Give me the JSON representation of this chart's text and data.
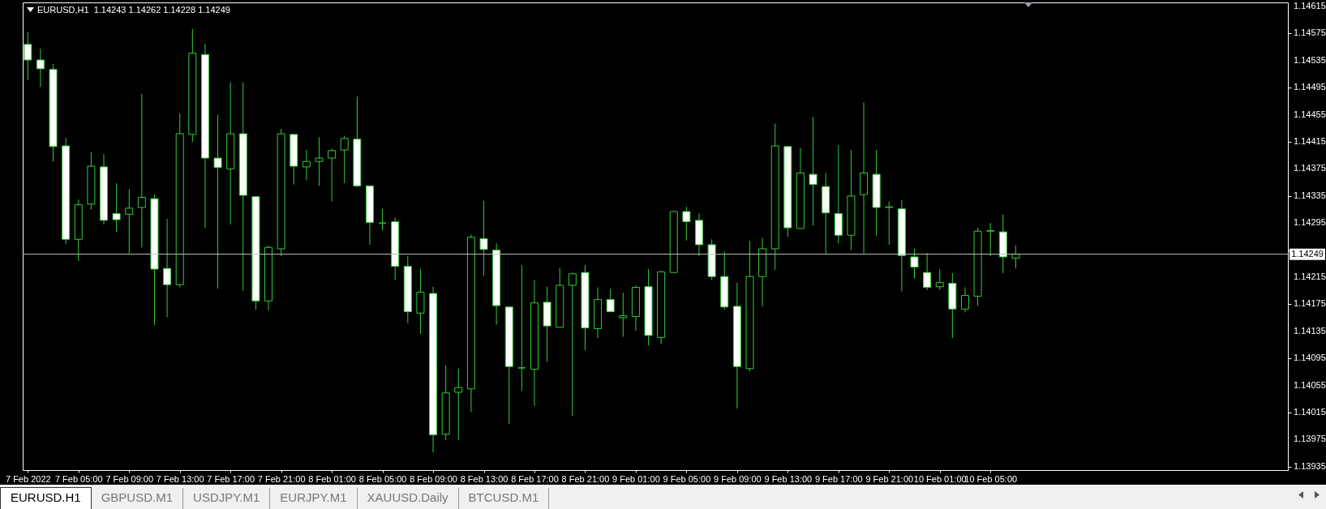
{
  "chart_data": {
    "type": "candlestick",
    "title": "EURUSD,H1  1.14243 1.14262 1.14228 1.14249",
    "x": [
      "2022-02-07T01:00",
      "2022-02-07T02:00",
      "2022-02-07T03:00",
      "2022-02-07T04:00",
      "2022-02-07T05:00",
      "2022-02-07T06:00",
      "2022-02-07T07:00",
      "2022-02-07T08:00",
      "2022-02-07T09:00",
      "2022-02-07T10:00",
      "2022-02-07T11:00",
      "2022-02-07T12:00",
      "2022-02-07T13:00",
      "2022-02-07T14:00",
      "2022-02-07T15:00",
      "2022-02-07T16:00",
      "2022-02-07T17:00",
      "2022-02-07T18:00",
      "2022-02-07T19:00",
      "2022-02-07T20:00",
      "2022-02-07T21:00",
      "2022-02-07T22:00",
      "2022-02-07T23:00",
      "2022-02-08T00:00",
      "2022-02-08T01:00",
      "2022-02-08T02:00",
      "2022-02-08T03:00",
      "2022-02-08T04:00",
      "2022-02-08T05:00",
      "2022-02-08T06:00",
      "2022-02-08T07:00",
      "2022-02-08T08:00",
      "2022-02-08T09:00",
      "2022-02-08T10:00",
      "2022-02-08T11:00",
      "2022-02-08T12:00",
      "2022-02-08T13:00",
      "2022-02-08T14:00",
      "2022-02-08T15:00",
      "2022-02-08T16:00",
      "2022-02-08T17:00",
      "2022-02-08T18:00",
      "2022-02-08T19:00",
      "2022-02-08T20:00",
      "2022-02-08T21:00",
      "2022-02-08T22:00",
      "2022-02-08T23:00",
      "2022-02-09T00:00",
      "2022-02-09T01:00",
      "2022-02-09T02:00",
      "2022-02-09T03:00",
      "2022-02-09T04:00",
      "2022-02-09T05:00",
      "2022-02-09T06:00",
      "2022-02-09T07:00",
      "2022-02-09T08:00",
      "2022-02-09T09:00",
      "2022-02-09T10:00",
      "2022-02-09T11:00",
      "2022-02-09T12:00",
      "2022-02-09T13:00",
      "2022-02-09T14:00",
      "2022-02-09T15:00",
      "2022-02-09T16:00",
      "2022-02-09T17:00",
      "2022-02-09T18:00",
      "2022-02-09T19:00",
      "2022-02-09T20:00",
      "2022-02-09T21:00",
      "2022-02-09T22:00",
      "2022-02-09T23:00",
      "2022-02-10T00:00",
      "2022-02-10T01:00",
      "2022-02-10T02:00",
      "2022-02-10T03:00",
      "2022-02-10T04:00",
      "2022-02-10T05:00",
      "2022-02-10T06:00",
      "2022-02-10T07:00"
    ],
    "ohlc": [
      [
        1.14559,
        1.14577,
        1.14506,
        1.14536
      ],
      [
        1.14536,
        1.14553,
        1.14496,
        1.14523
      ],
      [
        1.14522,
        1.1453,
        1.14386,
        1.14408
      ],
      [
        1.14409,
        1.14421,
        1.14264,
        1.14271
      ],
      [
        1.14271,
        1.1433,
        1.14239,
        1.14322
      ],
      [
        1.14323,
        1.144,
        1.14315,
        1.14379
      ],
      [
        1.14378,
        1.14397,
        1.14293,
        1.14299
      ],
      [
        1.14309,
        1.14354,
        1.14282,
        1.143
      ],
      [
        1.14308,
        1.14345,
        1.1425,
        1.14317
      ],
      [
        1.14318,
        1.14486,
        1.14259,
        1.14333
      ],
      [
        1.14331,
        1.14337,
        1.14144,
        1.14227
      ],
      [
        1.14228,
        1.14301,
        1.14156,
        1.14204
      ],
      [
        1.14204,
        1.14457,
        1.142,
        1.14427
      ],
      [
        1.14426,
        1.14582,
        1.14415,
        1.14546
      ],
      [
        1.14544,
        1.1456,
        1.14288,
        1.14391
      ],
      [
        1.14391,
        1.14455,
        1.14198,
        1.14377
      ],
      [
        1.14375,
        1.14503,
        1.14293,
        1.14427
      ],
      [
        1.14427,
        1.14503,
        1.14195,
        1.14336
      ],
      [
        1.14334,
        1.14334,
        1.14167,
        1.1418
      ],
      [
        1.1418,
        1.14262,
        1.14166,
        1.14259
      ],
      [
        1.14257,
        1.14434,
        1.14246,
        1.14427
      ],
      [
        1.14426,
        1.14426,
        1.14352,
        1.14379
      ],
      [
        1.14378,
        1.14403,
        1.14358,
        1.14386
      ],
      [
        1.14386,
        1.14422,
        1.1435,
        1.14391
      ],
      [
        1.14391,
        1.14405,
        1.14327,
        1.14402
      ],
      [
        1.14403,
        1.14424,
        1.14354,
        1.1442
      ],
      [
        1.14419,
        1.14482,
        1.14348,
        1.1435
      ],
      [
        1.1435,
        1.1435,
        1.14263,
        1.14296
      ],
      [
        1.14295,
        1.14316,
        1.14284,
        1.14295
      ],
      [
        1.14297,
        1.14303,
        1.14211,
        1.14231
      ],
      [
        1.14231,
        1.14246,
        1.14147,
        1.14164
      ],
      [
        1.14162,
        1.14227,
        1.14131,
        1.14193
      ],
      [
        1.14191,
        1.14201,
        1.13956,
        1.13982
      ],
      [
        1.13983,
        1.14085,
        1.13974,
        1.14044
      ],
      [
        1.14045,
        1.1408,
        1.13974,
        1.14052
      ],
      [
        1.1405,
        1.14278,
        1.14016,
        1.14274
      ],
      [
        1.14272,
        1.14328,
        1.14217,
        1.14256
      ],
      [
        1.14255,
        1.14265,
        1.14145,
        1.14173
      ],
      [
        1.14171,
        1.14171,
        1.13998,
        1.14083
      ],
      [
        1.14081,
        1.14233,
        1.14047,
        1.14081
      ],
      [
        1.14079,
        1.14211,
        1.14025,
        1.14177
      ],
      [
        1.14178,
        1.14201,
        1.1409,
        1.14143
      ],
      [
        1.14141,
        1.14229,
        1.14141,
        1.14203
      ],
      [
        1.14203,
        1.14222,
        1.1401,
        1.1422
      ],
      [
        1.14222,
        1.14233,
        1.14107,
        1.1414
      ],
      [
        1.14139,
        1.142,
        1.14125,
        1.14182
      ],
      [
        1.14182,
        1.14198,
        1.14164,
        1.14164
      ],
      [
        1.14155,
        1.14192,
        1.14127,
        1.14158
      ],
      [
        1.14157,
        1.14203,
        1.14136,
        1.142
      ],
      [
        1.14201,
        1.14227,
        1.14114,
        1.14129
      ],
      [
        1.14126,
        1.14224,
        1.14116,
        1.14223
      ],
      [
        1.14222,
        1.14312,
        1.14222,
        1.14312
      ],
      [
        1.14312,
        1.14319,
        1.14269,
        1.14297
      ],
      [
        1.14299,
        1.14309,
        1.14246,
        1.14263
      ],
      [
        1.14263,
        1.14271,
        1.14211,
        1.14216
      ],
      [
        1.14216,
        1.14253,
        1.14167,
        1.14171
      ],
      [
        1.14172,
        1.14207,
        1.14021,
        1.14083
      ],
      [
        1.1408,
        1.14269,
        1.14076,
        1.14216
      ],
      [
        1.14216,
        1.14273,
        1.14172,
        1.14257
      ],
      [
        1.14257,
        1.14442,
        1.14226,
        1.14409
      ],
      [
        1.14408,
        1.14409,
        1.14275,
        1.14288
      ],
      [
        1.14287,
        1.14406,
        1.14287,
        1.14369
      ],
      [
        1.14367,
        1.14452,
        1.14291,
        1.14352
      ],
      [
        1.14349,
        1.14369,
        1.14249,
        1.1431
      ],
      [
        1.14309,
        1.1441,
        1.14265,
        1.14277
      ],
      [
        1.14277,
        1.14403,
        1.14255,
        1.14335
      ],
      [
        1.14337,
        1.14473,
        1.1425,
        1.14369
      ],
      [
        1.14367,
        1.14403,
        1.14276,
        1.14318
      ],
      [
        1.14318,
        1.14327,
        1.14263,
        1.14319
      ],
      [
        1.14316,
        1.14329,
        1.14194,
        1.14247
      ],
      [
        1.14245,
        1.14257,
        1.14213,
        1.1423
      ],
      [
        1.14222,
        1.14251,
        1.14196,
        1.142
      ],
      [
        1.14201,
        1.14227,
        1.14196,
        1.14207
      ],
      [
        1.14206,
        1.14221,
        1.14125,
        1.14168
      ],
      [
        1.14168,
        1.142,
        1.14163,
        1.14188
      ],
      [
        1.14187,
        1.14288,
        1.14173,
        1.14283
      ],
      [
        1.14283,
        1.14295,
        1.14246,
        1.14284
      ],
      [
        1.14282,
        1.14308,
        1.14221,
        1.14245
      ],
      [
        1.14243,
        1.14262,
        1.14228,
        1.14249
      ]
    ],
    "xlim": [
      "2022-02-07T00:55",
      "2022-02-11T04:10"
    ],
    "xticks": [
      {
        "value": "2022-02-07T01:00",
        "label": "7 Feb 2022"
      },
      {
        "value": "2022-02-07T05:00",
        "label": "7 Feb 05:00"
      },
      {
        "value": "2022-02-07T09:00",
        "label": "7 Feb 09:00"
      },
      {
        "value": "2022-02-07T13:00",
        "label": "7 Feb 13:00"
      },
      {
        "value": "2022-02-07T17:00",
        "label": "7 Feb 17:00"
      },
      {
        "value": "2022-02-07T21:00",
        "label": "7 Feb 21:00"
      },
      {
        "value": "2022-02-08T01:00",
        "label": "8 Feb 01:00"
      },
      {
        "value": "2022-02-08T05:00",
        "label": "8 Feb 05:00"
      },
      {
        "value": "2022-02-08T09:00",
        "label": "8 Feb 09:00"
      },
      {
        "value": "2022-02-08T13:00",
        "label": "8 Feb 13:00"
      },
      {
        "value": "2022-02-08T17:00",
        "label": "8 Feb 17:00"
      },
      {
        "value": "2022-02-08T21:00",
        "label": "8 Feb 21:00"
      },
      {
        "value": "2022-02-09T01:00",
        "label": "9 Feb 01:00"
      },
      {
        "value": "2022-02-09T05:00",
        "label": "9 Feb 05:00"
      },
      {
        "value": "2022-02-09T09:00",
        "label": "9 Feb 09:00"
      },
      {
        "value": "2022-02-09T13:00",
        "label": "9 Feb 13:00"
      },
      {
        "value": "2022-02-09T17:00",
        "label": "9 Feb 17:00"
      },
      {
        "value": "2022-02-09T21:00",
        "label": "9 Feb 21:00"
      },
      {
        "value": "2022-02-10T01:00",
        "label": "10 Feb 01:00"
      },
      {
        "value": "2022-02-10T05:00",
        "label": "10 Feb 05:00"
      }
    ],
    "ylim": [
      1.1393,
      1.14621
    ],
    "yticks": [
      1.13935,
      1.13975,
      1.14015,
      1.14055,
      1.14095,
      1.14135,
      1.14175,
      1.14215,
      {
        "value": 1.14255,
        "label": null
      },
      1.14295,
      1.14335,
      1.14375,
      1.14415,
      1.14455,
      1.14495,
      1.14535,
      1.14575,
      1.14615
    ],
    "ref_lines": [
      {
        "axis": "y",
        "value": 1.14249,
        "label": "1.14249",
        "color": "#c0c0c0"
      }
    ],
    "annotations": [
      "EURUSD.H1",
      "GBPUSD.M1",
      "USDJPY.M1",
      "EURJPY.M1",
      "XAUUSD.Daily",
      "BTCUSD.M1"
    ]
  }
}
